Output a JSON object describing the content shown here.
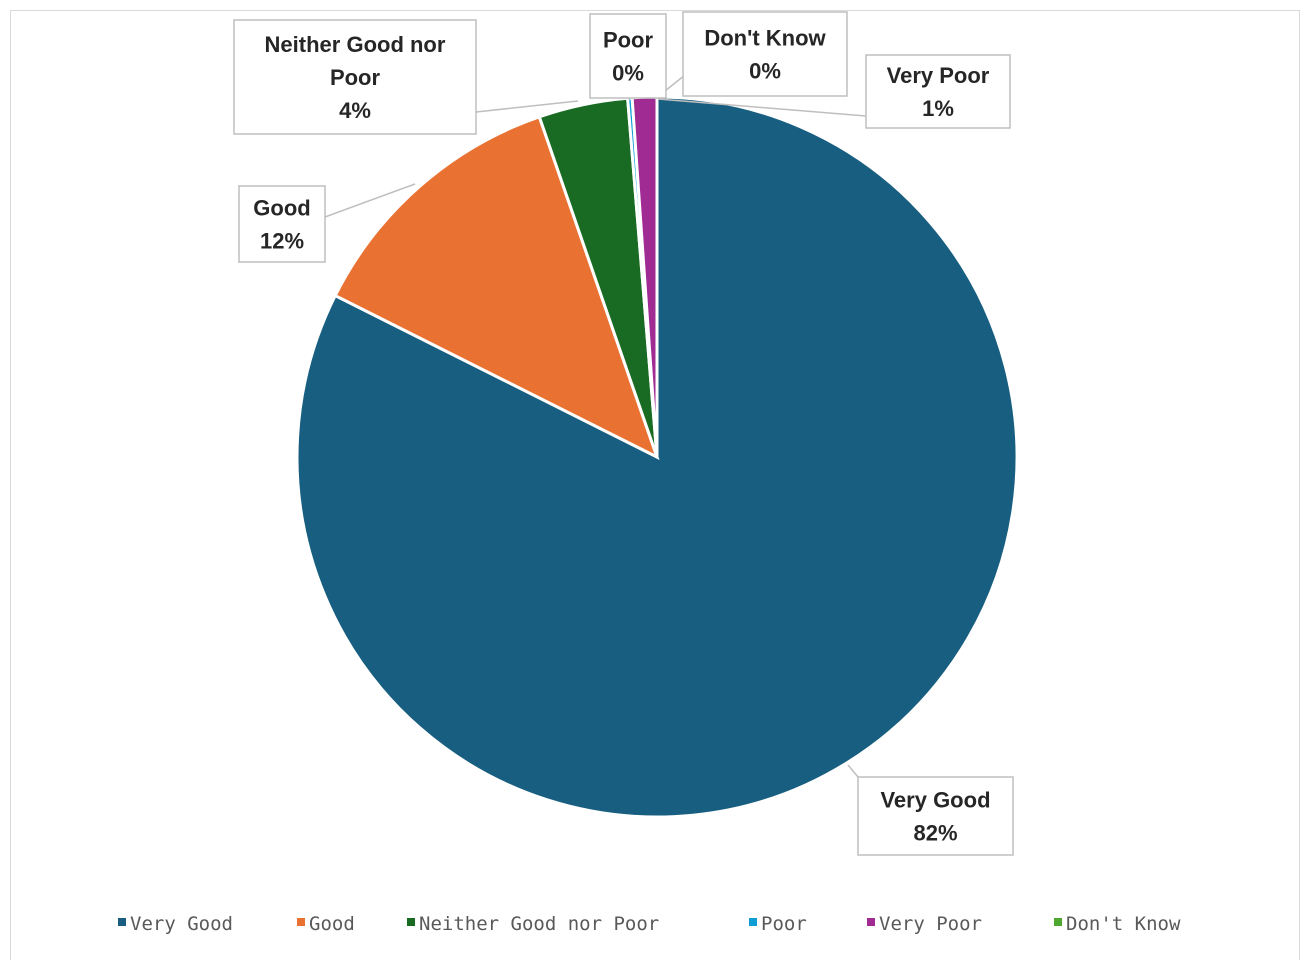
{
  "chart_data": {
    "type": "pie",
    "title": "",
    "start_angle_deg": 0,
    "direction": "clockwise",
    "legend_position": "bottom",
    "categories": [
      "Very Good",
      "Good",
      "Neither Good nor Poor",
      "Poor",
      "Very Poor",
      "Don't Know"
    ],
    "values": [
      82.4,
      12.3,
      4.0,
      0.2,
      1.1,
      0.0
    ],
    "data_labels": [
      {
        "name": "Very Good",
        "pct": "82%"
      },
      {
        "name": "Good",
        "pct": "12%"
      },
      {
        "name": "Neither Good nor Poor",
        "pct": "4%"
      },
      {
        "name": "Poor",
        "pct": "0%"
      },
      {
        "name": "Very Poor",
        "pct": "1%"
      },
      {
        "name": "Don't Know",
        "pct": "0%"
      }
    ],
    "colors": [
      "#175e80",
      "#e97132",
      "#196b24",
      "#0f9ed5",
      "#a02b93",
      "#4ea72e"
    ]
  }
}
